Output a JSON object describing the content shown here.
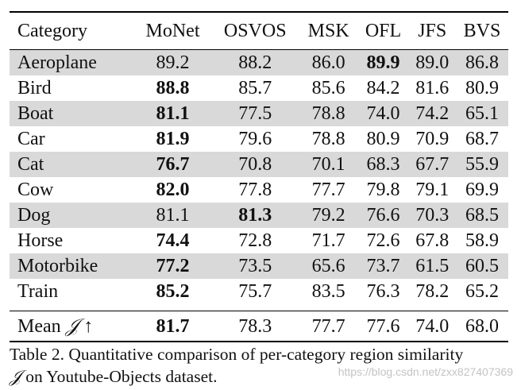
{
  "table": {
    "columns": [
      "Category",
      "MoNet",
      "OSVOS",
      "MSK",
      "OFL",
      "JFS",
      "BVS"
    ],
    "rows": [
      {
        "category": "Aeroplane",
        "values": [
          "89.2",
          "88.2",
          "86.0",
          "89.9",
          "89.0",
          "86.8"
        ],
        "bold": [
          3
        ]
      },
      {
        "category": "Bird",
        "values": [
          "88.8",
          "85.7",
          "85.6",
          "84.2",
          "81.6",
          "80.9"
        ],
        "bold": [
          0
        ]
      },
      {
        "category": "Boat",
        "values": [
          "81.1",
          "77.5",
          "78.8",
          "74.0",
          "74.2",
          "65.1"
        ],
        "bold": [
          0
        ]
      },
      {
        "category": "Car",
        "values": [
          "81.9",
          "79.6",
          "78.8",
          "80.9",
          "70.9",
          "68.7"
        ],
        "bold": [
          0
        ]
      },
      {
        "category": "Cat",
        "values": [
          "76.7",
          "70.8",
          "70.1",
          "68.3",
          "67.7",
          "55.9"
        ],
        "bold": [
          0
        ]
      },
      {
        "category": "Cow",
        "values": [
          "82.0",
          "77.8",
          "77.7",
          "79.8",
          "79.1",
          "69.9"
        ],
        "bold": [
          0
        ]
      },
      {
        "category": "Dog",
        "values": [
          "81.1",
          "81.3",
          "79.2",
          "76.6",
          "70.3",
          "68.5"
        ],
        "bold": [
          1
        ]
      },
      {
        "category": "Horse",
        "values": [
          "74.4",
          "72.8",
          "71.7",
          "72.6",
          "67.8",
          "58.9"
        ],
        "bold": [
          0
        ]
      },
      {
        "category": "Motorbike",
        "values": [
          "77.2",
          "73.5",
          "65.6",
          "73.7",
          "61.5",
          "60.5"
        ],
        "bold": [
          0
        ]
      },
      {
        "category": "Train",
        "values": [
          "85.2",
          "75.7",
          "83.5",
          "76.3",
          "78.2",
          "65.2"
        ],
        "bold": [
          0
        ]
      }
    ],
    "mean": {
      "label_prefix": "Mean ",
      "symbol": "𝒥",
      "arrow": " ↑",
      "values": [
        "81.7",
        "78.3",
        "77.7",
        "77.6",
        "74.0",
        "68.0"
      ],
      "bold": [
        0
      ]
    }
  },
  "caption": {
    "line1": "Table 2. Quantitative comparison of per-category region similarity",
    "symbol": "𝒥",
    "line2": " on Youtube-Objects dataset."
  },
  "watermark": "https://blog.csdn.net/zxx827407369"
}
